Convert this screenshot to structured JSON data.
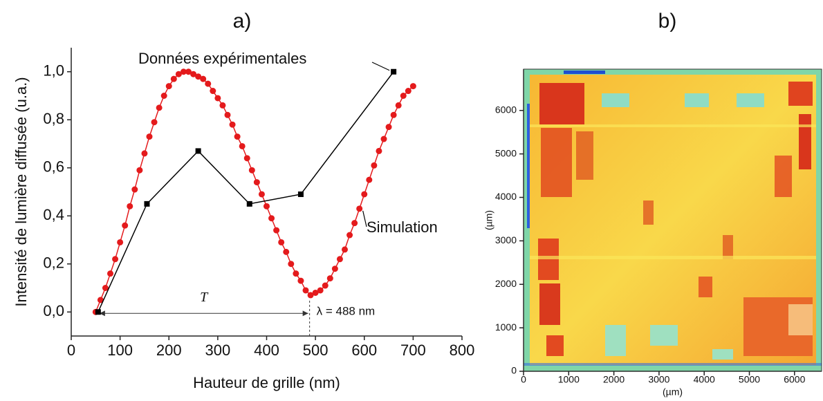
{
  "chart_data": [
    {
      "type": "line",
      "title": "a)",
      "xlabel": "Hauteur de grille (nm)",
      "ylabel": "Intensité de lumière diffusée (u.a.)",
      "xlim": [
        0,
        800
      ],
      "xticks": [
        0,
        100,
        200,
        300,
        400,
        500,
        600,
        700,
        800
      ],
      "ylim": [
        -0.1,
        1.1
      ],
      "yticks": [
        {
          "value": 0,
          "label": "0,0"
        },
        {
          "value": 0.2,
          "label": "0,2"
        },
        {
          "value": 0.4,
          "label": "0,4"
        },
        {
          "value": 0.6,
          "label": "0,6"
        },
        {
          "value": 0.8,
          "label": "0,8"
        },
        {
          "value": 1.0,
          "label": "1,0"
        }
      ],
      "series": [
        {
          "name": "Simulation",
          "color": "#e41a1c",
          "marker": "circle",
          "x": [
            50,
            60,
            70,
            80,
            90,
            100,
            110,
            120,
            130,
            140,
            150,
            160,
            170,
            180,
            190,
            200,
            210,
            220,
            230,
            240,
            250,
            260,
            270,
            280,
            290,
            300,
            310,
            320,
            330,
            340,
            350,
            360,
            370,
            380,
            390,
            400,
            410,
            420,
            430,
            440,
            450,
            460,
            470,
            480,
            490,
            500,
            510,
            520,
            530,
            540,
            550,
            560,
            570,
            580,
            590,
            600,
            610,
            620,
            630,
            640,
            650,
            660,
            670,
            680,
            690,
            700
          ],
          "values": [
            0,
            0.05,
            0.1,
            0.16,
            0.22,
            0.29,
            0.36,
            0.44,
            0.51,
            0.59,
            0.66,
            0.73,
            0.79,
            0.85,
            0.9,
            0.94,
            0.97,
            0.99,
            1.0,
            1.0,
            0.99,
            0.98,
            0.97,
            0.95,
            0.92,
            0.89,
            0.86,
            0.82,
            0.78,
            0.73,
            0.69,
            0.64,
            0.59,
            0.54,
            0.49,
            0.44,
            0.39,
            0.34,
            0.29,
            0.25,
            0.2,
            0.16,
            0.13,
            0.09,
            0.07,
            0.08,
            0.09,
            0.11,
            0.14,
            0.18,
            0.22,
            0.26,
            0.32,
            0.37,
            0.43,
            0.49,
            0.55,
            0.61,
            0.67,
            0.72,
            0.77,
            0.82,
            0.86,
            0.9,
            0.92,
            0.94
          ]
        },
        {
          "name": "Données expérimentales",
          "color": "#000000",
          "marker": "square",
          "x": [
            55,
            155,
            260,
            365,
            470,
            660
          ],
          "values": [
            0,
            0.45,
            0.67,
            0.45,
            0.49,
            1.0
          ]
        }
      ],
      "annotations": [
        {
          "text": "T"
        },
        {
          "text": "λ = 488 nm",
          "x": 488
        }
      ]
    },
    {
      "type": "heatmap",
      "title": "b)",
      "xlabel": "(µm)",
      "ylabel": "(µm)",
      "xlim": [
        0,
        6600
      ],
      "xticks": [
        0,
        1000,
        2000,
        3000,
        4000,
        5000,
        6000
      ],
      "ylim": [
        0,
        6950
      ],
      "yticks": [
        0,
        1000,
        2000,
        3000,
        4000,
        5000,
        6000
      ]
    }
  ]
}
